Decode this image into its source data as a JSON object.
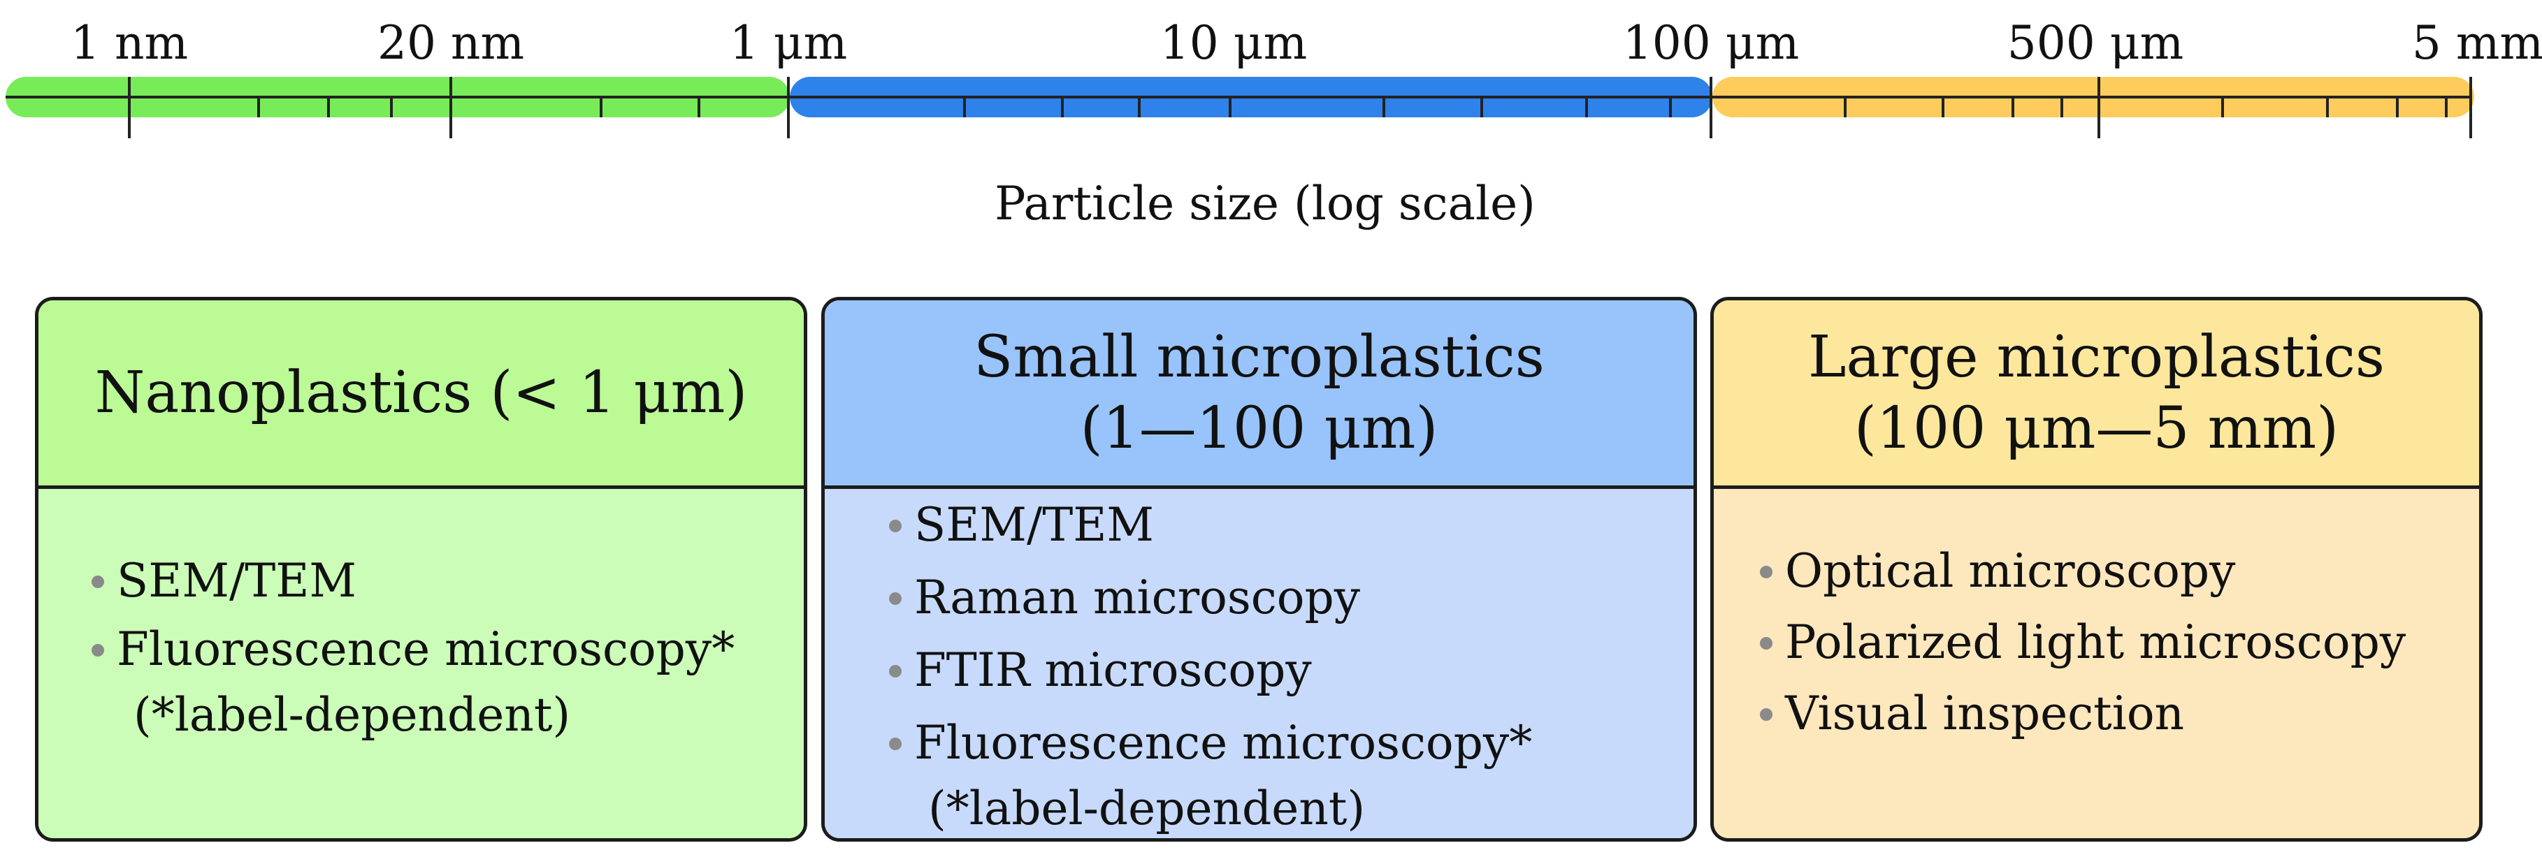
{
  "scale": {
    "tick_labels": [
      "1 nm",
      "20 nm",
      "1 μm",
      "10 μm",
      "100 μm",
      "500 μm",
      "5 mm"
    ],
    "axis_label": "Particle size (log scale)",
    "range_colors": {
      "nano": "#78ec58",
      "small": "#2f82ea",
      "large": "#fdcc5c"
    }
  },
  "categories": [
    {
      "title_line1": "Nanoplastics (< 1 μm)",
      "title_line2": "",
      "items": [
        "SEM/TEM",
        "Fluorescence microscopy*"
      ],
      "note": "(*label-dependent)"
    },
    {
      "title_line1": "Small microplastics",
      "title_line2": "(1—100 μm)",
      "items": [
        "SEM/TEM",
        "Raman microscopy",
        "FTIR microscopy",
        "Fluorescence microscopy*"
      ],
      "note": "(*label-dependent)"
    },
    {
      "title_line1": "Large microplastics",
      "title_line2": "(100 μm—5 mm)",
      "items": [
        "Optical microscopy",
        "Polarized light microscopy",
        "Visual inspection"
      ],
      "note": ""
    }
  ]
}
